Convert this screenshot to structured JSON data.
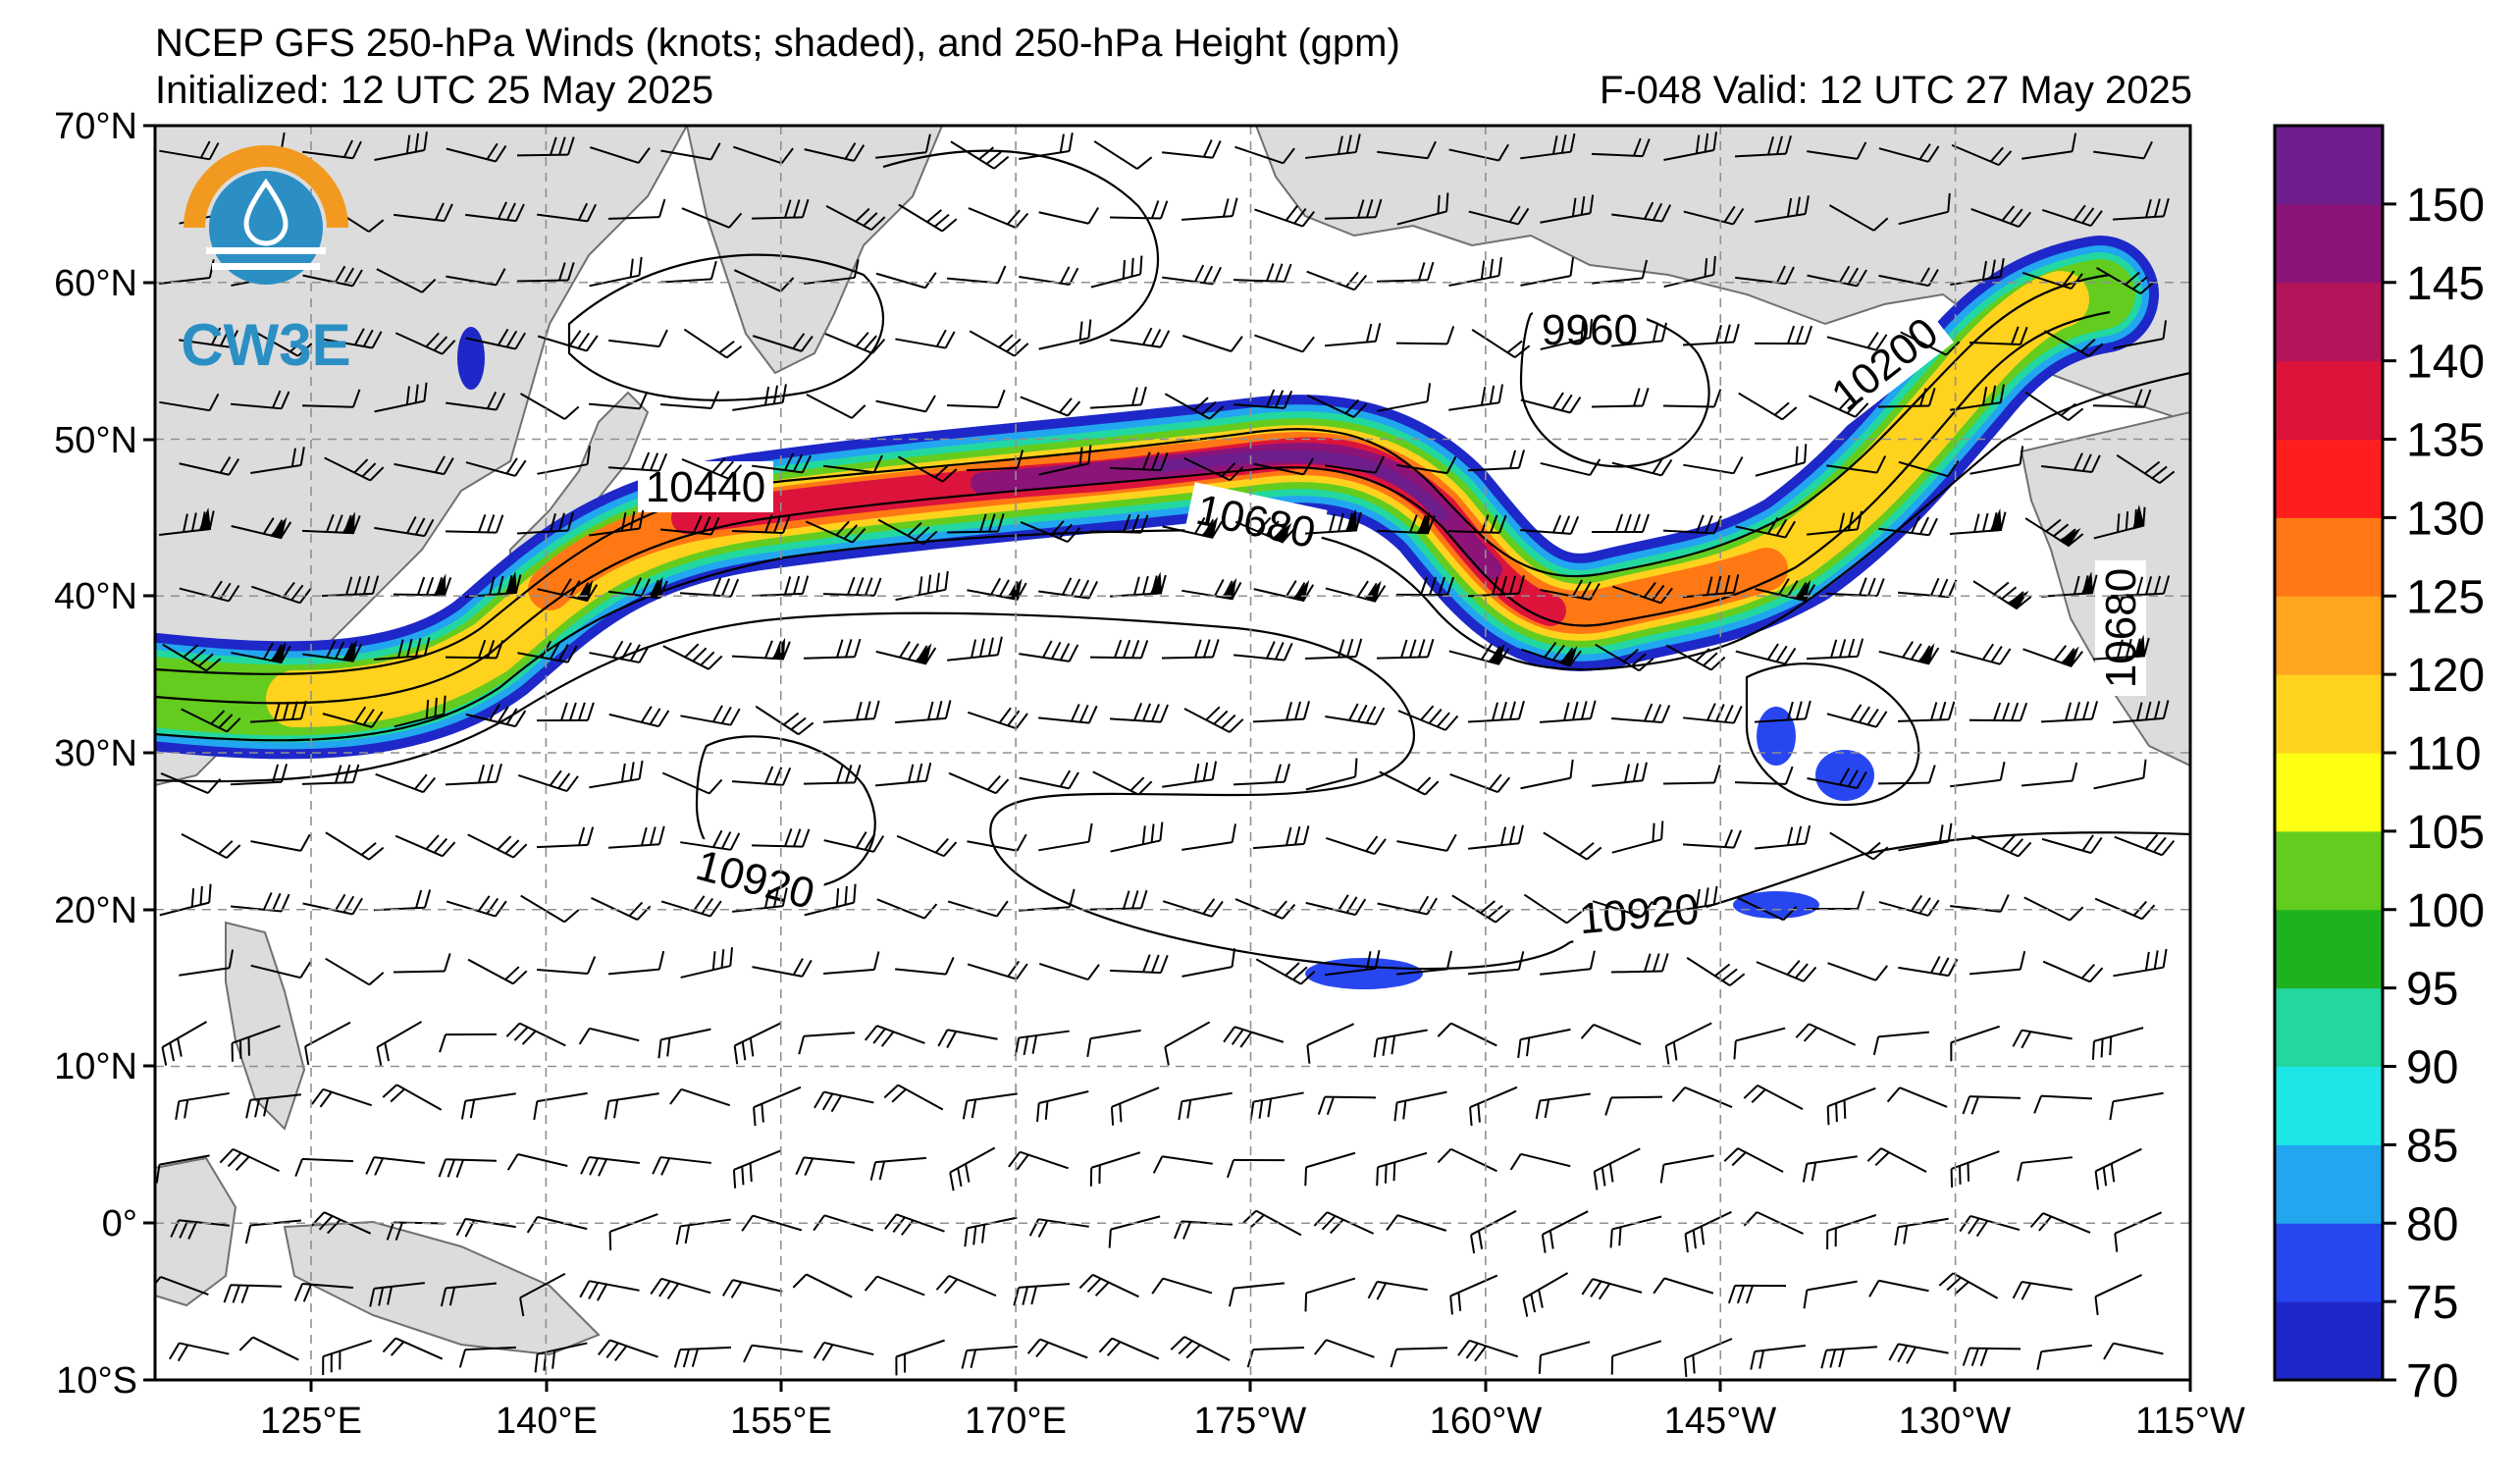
{
  "header": {
    "title": "NCEP GFS 250-hPa Winds (knots; shaded), and 250-hPa Height (gpm)",
    "initialized": "Initialized: 12 UTC 25 May 2025",
    "valid": "F-048  Valid: 12 UTC 27 May 2025"
  },
  "logo": {
    "text": "CW3E",
    "colors": {
      "ring": "#f29a1f",
      "blue": "#2b8fc4"
    }
  },
  "map": {
    "lat_labels": [
      "70°N",
      "60°N",
      "50°N",
      "40°N",
      "30°N",
      "20°N",
      "10°N",
      "0°",
      "10°S"
    ],
    "lon_labels": [
      "125°E",
      "140°E",
      "155°E",
      "170°E",
      "175°W",
      "160°W",
      "145°W",
      "130°W",
      "115°W"
    ],
    "lat_range": [
      -10,
      70
    ],
    "lon_range": [
      115,
      245
    ],
    "grid": "dashed",
    "land_color": "#dcdcdc",
    "ocean_color": "#ffffff"
  },
  "contour_labels": [
    {
      "text": "10440"
    },
    {
      "text": "10680"
    },
    {
      "text": "9960"
    },
    {
      "text": "10200"
    },
    {
      "text": "10920"
    },
    {
      "text": "10920"
    },
    {
      "text": "10680"
    }
  ],
  "colorbar": {
    "levels": [
      70,
      75,
      80,
      85,
      90,
      95,
      100,
      105,
      110,
      120,
      125,
      130,
      135,
      140,
      145,
      150,
      155
    ],
    "tick_labels": [
      "70",
      "75",
      "80",
      "85",
      "90",
      "95",
      "100",
      "105",
      "110",
      "120",
      "125",
      "130",
      "135",
      "140",
      "145",
      "150"
    ],
    "colors": [
      "#1e28c8",
      "#2846f0",
      "#22a6f0",
      "#1ee6e6",
      "#22d8a0",
      "#1fb21f",
      "#64cc1e",
      "#ffff14",
      "#ffd21e",
      "#ffa51e",
      "#ff7814",
      "#ff1e1e",
      "#dc143c",
      "#b4145a",
      "#8c1478",
      "#6e1e8c"
    ]
  }
}
